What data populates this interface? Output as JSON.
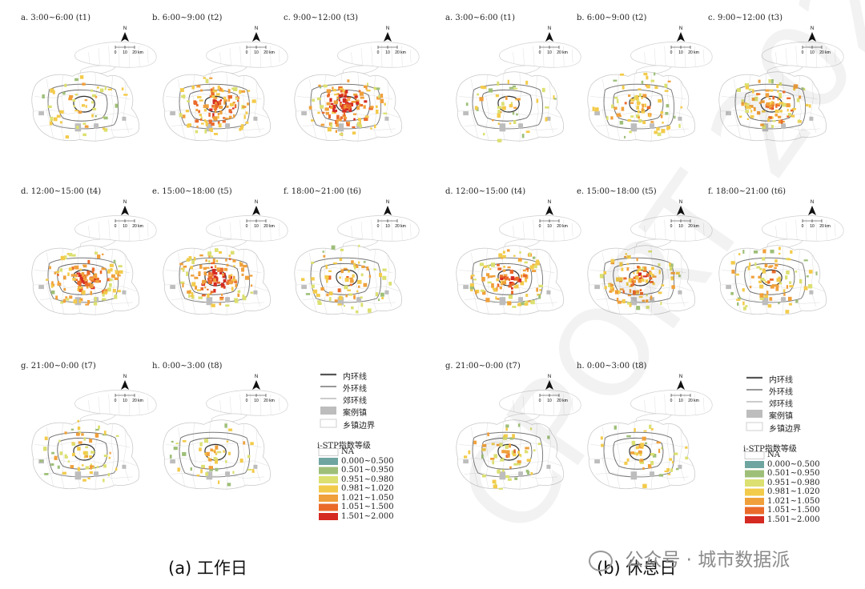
{
  "colors": {
    "NA": "#ffffff",
    "c1": "#6fa5a0",
    "c2": "#9ebf78",
    "c3": "#dce070",
    "c4": "#f3cb4b",
    "c5": "#f0a03b",
    "c6": "#ea6a2a",
    "c7": "#d52a22",
    "case_town": "#bdbdbd",
    "boundary": "#cfcfcf"
  },
  "panels": {
    "workday": [
      {
        "label": "a. 3:00~6:00 (t1)",
        "intensity": 0.25
      },
      {
        "label": "b. 6:00~9:00 (t2)",
        "intensity": 0.85
      },
      {
        "label": "c. 9:00~12:00 (t3)",
        "intensity": 1.0
      },
      {
        "label": "d. 12:00~15:00 (t4)",
        "intensity": 0.9
      },
      {
        "label": "e. 15:00~18:00 (t5)",
        "intensity": 0.95
      },
      {
        "label": "f. 18:00~21:00 (t6)",
        "intensity": 0.45
      },
      {
        "label": "g. 21:00~0:00 (t7)",
        "intensity": 0.35
      },
      {
        "label": "h. 0:00~3:00 (t8)",
        "intensity": 0.25
      }
    ],
    "weekend": [
      {
        "label": "a. 3:00~6:00 (t1)",
        "intensity": 0.22
      },
      {
        "label": "b. 6:00~9:00 (t2)",
        "intensity": 0.45
      },
      {
        "label": "c. 9:00~12:00 (t3)",
        "intensity": 0.65
      },
      {
        "label": "d. 12:00~15:00 (t4)",
        "intensity": 0.75
      },
      {
        "label": "e. 15:00~18:00 (t5)",
        "intensity": 0.7
      },
      {
        "label": "f. 18:00~21:00 (t6)",
        "intensity": 0.5
      },
      {
        "label": "g. 21:00~0:00 (t7)",
        "intensity": 0.35
      },
      {
        "label": "h. 0:00~3:00 (t8)",
        "intensity": 0.25
      }
    ]
  },
  "scalebar": {
    "north": "N",
    "ticks": [
      "0",
      "10",
      "20 km"
    ]
  },
  "legend": {
    "lines": [
      "内环线",
      "外环线",
      "郊环线"
    ],
    "areas": [
      "案例镇",
      "乡镇边界"
    ],
    "title": "i-STP指数等级",
    "classes": [
      "NA",
      "0.000~0.500",
      "0.501~0.950",
      "0.951~0.980",
      "0.981~1.020",
      "1.021~1.050",
      "1.051~1.500",
      "1.501~2.000"
    ]
  },
  "captions": {
    "workday": "(a) 工作日",
    "weekend": "(b) 休息日"
  },
  "watermark": {
    "account": "公众号 · 城市数据派",
    "bg_text": "CPORT 2022"
  }
}
